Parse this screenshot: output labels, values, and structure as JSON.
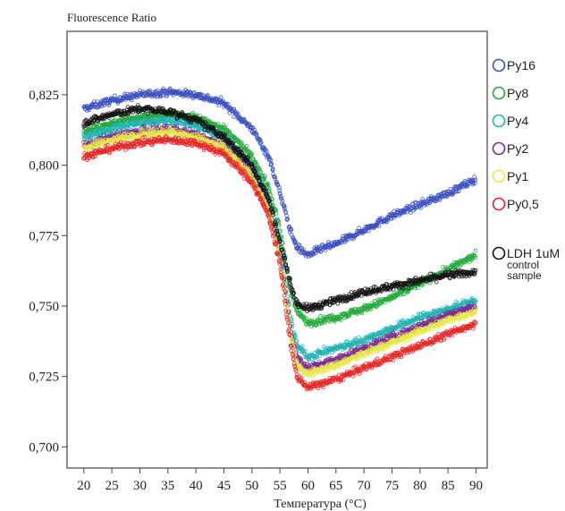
{
  "chart_data": {
    "type": "scatter",
    "title": "",
    "ylabel": "Fluorescence Ratio",
    "xlabel": "Температура (°C)",
    "xlim": [
      17,
      92
    ],
    "ylim": [
      0.6925,
      0.8475
    ],
    "xticks": [
      20,
      25,
      30,
      35,
      40,
      45,
      50,
      55,
      60,
      65,
      70,
      75,
      80,
      85,
      90
    ],
    "x_tick_labels": [
      "20",
      "25",
      "30",
      "35",
      "40",
      "45",
      "50",
      "55",
      "60",
      "65",
      "70",
      "75",
      "80",
      "85",
      "90"
    ],
    "yticks": [
      0.7,
      0.725,
      0.75,
      0.775,
      0.8,
      0.825
    ],
    "y_tick_labels": [
      "0,700",
      "0,725",
      "0,750",
      "0,775",
      "0,800",
      "0,825"
    ],
    "grid": false,
    "legend_position": "right",
    "series": [
      {
        "name": "Py16",
        "color": "#3a4fc0",
        "points": [
          [
            20,
            0.82
          ],
          [
            25,
            0.823
          ],
          [
            30,
            0.825
          ],
          [
            35,
            0.826
          ],
          [
            40,
            0.825
          ],
          [
            45,
            0.822
          ],
          [
            50,
            0.813
          ],
          [
            53,
            0.803
          ],
          [
            55,
            0.79
          ],
          [
            57,
            0.776
          ],
          [
            58,
            0.771
          ],
          [
            60,
            0.768
          ],
          [
            62,
            0.77
          ],
          [
            65,
            0.772
          ],
          [
            70,
            0.777
          ],
          [
            75,
            0.782
          ],
          [
            80,
            0.786
          ],
          [
            85,
            0.79
          ],
          [
            90,
            0.795
          ]
        ]
      },
      {
        "name": "Py8",
        "color": "#22a83a",
        "points": [
          [
            20,
            0.812
          ],
          [
            25,
            0.815
          ],
          [
            30,
            0.817
          ],
          [
            35,
            0.818
          ],
          [
            40,
            0.817
          ],
          [
            45,
            0.813
          ],
          [
            50,
            0.803
          ],
          [
            53,
            0.792
          ],
          [
            55,
            0.777
          ],
          [
            57,
            0.755
          ],
          [
            58,
            0.748
          ],
          [
            60,
            0.744
          ],
          [
            65,
            0.746
          ],
          [
            70,
            0.749
          ],
          [
            75,
            0.753
          ],
          [
            80,
            0.758
          ],
          [
            85,
            0.763
          ],
          [
            90,
            0.768
          ]
        ]
      },
      {
        "name": "Py4",
        "color": "#1fb3b3",
        "points": [
          [
            20,
            0.81
          ],
          [
            25,
            0.813
          ],
          [
            30,
            0.815
          ],
          [
            35,
            0.816
          ],
          [
            40,
            0.814
          ],
          [
            45,
            0.81
          ],
          [
            50,
            0.8
          ],
          [
            53,
            0.788
          ],
          [
            55,
            0.772
          ],
          [
            57,
            0.745
          ],
          [
            58,
            0.736
          ],
          [
            60,
            0.732
          ],
          [
            65,
            0.735
          ],
          [
            70,
            0.738
          ],
          [
            75,
            0.742
          ],
          [
            80,
            0.746
          ],
          [
            85,
            0.749
          ],
          [
            90,
            0.752
          ]
        ]
      },
      {
        "name": "Py2",
        "color": "#7a2a8e",
        "points": [
          [
            20,
            0.807
          ],
          [
            25,
            0.81
          ],
          [
            30,
            0.812
          ],
          [
            35,
            0.813
          ],
          [
            40,
            0.811
          ],
          [
            45,
            0.807
          ],
          [
            50,
            0.797
          ],
          [
            53,
            0.785
          ],
          [
            55,
            0.769
          ],
          [
            57,
            0.741
          ],
          [
            58,
            0.732
          ],
          [
            60,
            0.728
          ],
          [
            65,
            0.731
          ],
          [
            70,
            0.735
          ],
          [
            75,
            0.739
          ],
          [
            80,
            0.743
          ],
          [
            85,
            0.747
          ],
          [
            90,
            0.75
          ]
        ]
      },
      {
        "name": "Py1",
        "color": "#e8e84a",
        "points": [
          [
            20,
            0.806
          ],
          [
            25,
            0.809
          ],
          [
            30,
            0.811
          ],
          [
            35,
            0.812
          ],
          [
            40,
            0.81
          ],
          [
            45,
            0.806
          ],
          [
            50,
            0.796
          ],
          [
            53,
            0.784
          ],
          [
            55,
            0.768
          ],
          [
            57,
            0.739
          ],
          [
            58,
            0.729
          ],
          [
            60,
            0.726
          ],
          [
            65,
            0.729
          ],
          [
            70,
            0.733
          ],
          [
            75,
            0.737
          ],
          [
            80,
            0.741
          ],
          [
            85,
            0.745
          ],
          [
            90,
            0.748
          ]
        ]
      },
      {
        "name": "Py0,5",
        "color": "#e82525",
        "points": [
          [
            20,
            0.803
          ],
          [
            25,
            0.806
          ],
          [
            30,
            0.808
          ],
          [
            35,
            0.809
          ],
          [
            40,
            0.808
          ],
          [
            45,
            0.804
          ],
          [
            50,
            0.794
          ],
          [
            53,
            0.782
          ],
          [
            55,
            0.765
          ],
          [
            57,
            0.735
          ],
          [
            58,
            0.725
          ],
          [
            60,
            0.721
          ],
          [
            65,
            0.724
          ],
          [
            70,
            0.728
          ],
          [
            75,
            0.732
          ],
          [
            80,
            0.736
          ],
          [
            85,
            0.74
          ],
          [
            90,
            0.744
          ]
        ]
      },
      {
        "name": "LDH 1uM control sample",
        "color": "#111111",
        "points": [
          [
            20,
            0.815
          ],
          [
            25,
            0.818
          ],
          [
            30,
            0.82
          ],
          [
            35,
            0.819
          ],
          [
            40,
            0.816
          ],
          [
            45,
            0.81
          ],
          [
            50,
            0.8
          ],
          [
            53,
            0.788
          ],
          [
            55,
            0.773
          ],
          [
            57,
            0.757
          ],
          [
            58,
            0.751
          ],
          [
            60,
            0.749
          ],
          [
            65,
            0.752
          ],
          [
            70,
            0.755
          ],
          [
            75,
            0.757
          ],
          [
            80,
            0.759
          ],
          [
            85,
            0.761
          ],
          [
            90,
            0.762
          ]
        ]
      }
    ],
    "legend_labels": [
      [
        "Py16"
      ],
      [
        "Py8"
      ],
      [
        "Py4"
      ],
      [
        "Py2"
      ],
      [
        "Py1"
      ],
      [
        "Py0,5"
      ],
      [
        "LDH 1uM",
        "control",
        "sample"
      ]
    ]
  }
}
